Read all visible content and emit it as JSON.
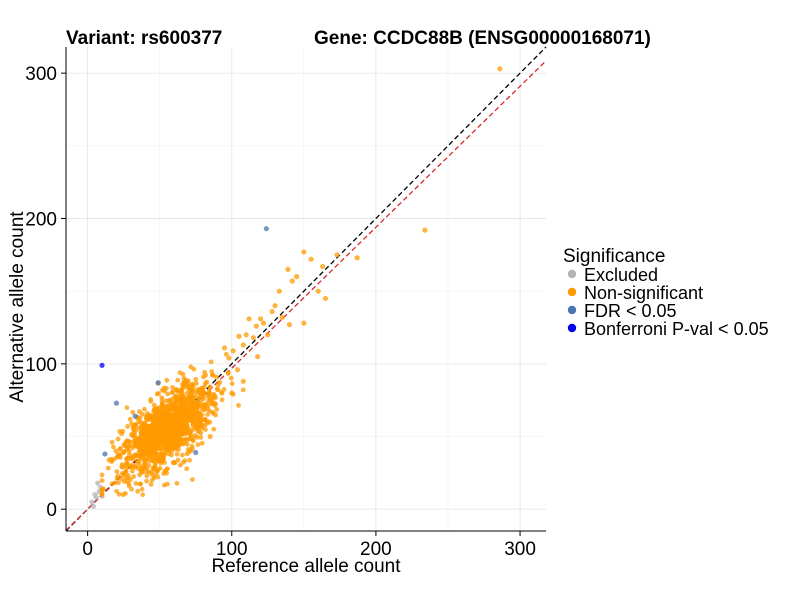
{
  "chart_data": {
    "type": "scatter",
    "title_left": "Variant: rs600377",
    "title_right": "Gene: CCDC88B (ENSG00000168071)",
    "xlabel": "Reference allele count",
    "ylabel": "Alternative allele count",
    "xlim": [
      -15,
      318
    ],
    "ylim": [
      -15,
      318
    ],
    "x_ticks": [
      0,
      100,
      200,
      300
    ],
    "y_ticks": [
      0,
      100,
      200,
      300
    ],
    "x_tick_labels": [
      "0",
      "100",
      "200",
      "300"
    ],
    "y_tick_labels": [
      "0",
      "100",
      "200",
      "300"
    ],
    "grid": true,
    "reference_lines": [
      {
        "name": "identity",
        "slope": 1.0,
        "intercept": 0,
        "color": "#000000",
        "style": "dashed"
      },
      {
        "name": "fitted",
        "slope": 0.97,
        "intercept": 0,
        "color": "#d62728",
        "style": "dashed"
      }
    ],
    "legend": {
      "title": "Significance",
      "placement": "right",
      "entries": [
        {
          "label": "Excluded",
          "color": "#b3b3b3"
        },
        {
          "label": "Non-significant",
          "color": "#ff9900"
        },
        {
          "label": "FDR < 0.05",
          "color": "#4a74b0"
        },
        {
          "label": "Bonferroni P-val < 0.05",
          "color": "#0000ee"
        }
      ]
    },
    "series": [
      {
        "name": "Excluded",
        "color": "#b3b3b3",
        "points": [
          [
            5,
            10
          ],
          [
            7,
            18
          ],
          [
            3,
            5
          ],
          [
            8,
            12
          ],
          [
            6,
            8
          ],
          [
            9,
            15
          ],
          [
            4,
            2
          ],
          [
            10,
            9
          ]
        ]
      },
      {
        "name": "Non-significant",
        "color": "#ff9900",
        "bulk": {
          "count": 1300,
          "center": [
            55,
            55
          ],
          "spread": 14,
          "x_range": [
            10,
            110
          ],
          "y_range": [
            10,
            110
          ]
        },
        "points": [
          [
            286,
            303
          ],
          [
            234,
            192
          ],
          [
            187,
            173
          ],
          [
            173,
            175
          ],
          [
            163,
            167
          ],
          [
            150,
            177
          ],
          [
            145,
            160
          ],
          [
            142,
            157
          ],
          [
            155,
            172
          ],
          [
            139,
            165
          ],
          [
            130,
            140
          ],
          [
            133,
            150
          ],
          [
            128,
            136
          ],
          [
            117,
            126
          ],
          [
            112,
            131
          ],
          [
            120,
            131
          ],
          [
            108,
            113
          ],
          [
            105,
            119
          ],
          [
            95,
            111
          ],
          [
            150,
            128
          ],
          [
            140,
            127
          ],
          [
            160,
            150
          ],
          [
            165,
            145
          ],
          [
            125,
            120
          ],
          [
            135,
            132
          ],
          [
            110,
            120
          ],
          [
            101,
            109
          ],
          [
            115,
            118
          ],
          [
            98,
            104
          ],
          [
            122,
            128
          ],
          [
            104,
            96
          ],
          [
            118,
            105
          ],
          [
            85,
            50
          ],
          [
            88,
            78
          ],
          [
            100,
            80
          ],
          [
            108,
            88
          ]
        ]
      },
      {
        "name": "FDR < 0.05",
        "color": "#4a74b0",
        "points": [
          [
            124,
            193
          ],
          [
            49,
            87
          ],
          [
            20,
            73
          ],
          [
            33,
            64
          ],
          [
            12,
            38
          ],
          [
            75,
            39
          ]
        ]
      },
      {
        "name": "Bonferroni P-val < 0.05",
        "color": "#0000ee",
        "points": [
          [
            10,
            99
          ]
        ]
      }
    ]
  }
}
